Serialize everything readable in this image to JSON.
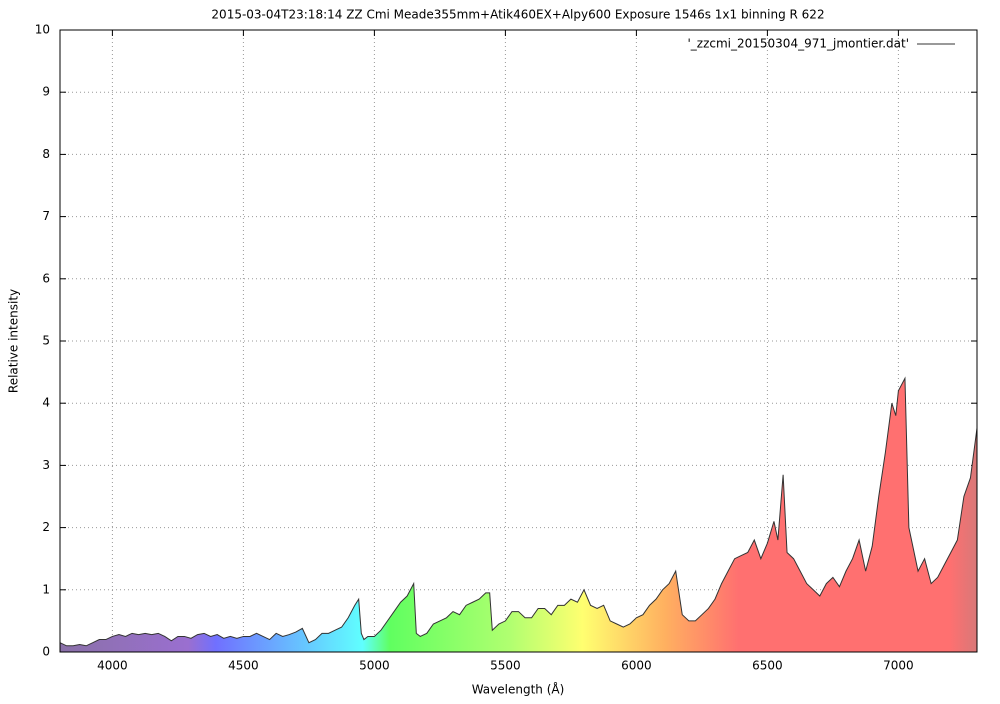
{
  "chart_data": {
    "type": "area",
    "title": "2015-03-04T23:18:14 ZZ Cmi Meade355mm+Atik460EX+Alpy600 Exposure 1546s 1x1 binning R 622",
    "x_label": "Wavelength (Å)",
    "y_label": "Relative intensity",
    "xlim": [
      3800,
      7300
    ],
    "ylim": [
      0,
      10
    ],
    "xticks": [
      4000,
      4500,
      5000,
      5500,
      6000,
      6500,
      7000
    ],
    "yticks": [
      0,
      1,
      2,
      3,
      4,
      5,
      6,
      7,
      8,
      9,
      10
    ],
    "grid": true,
    "legend": "top-right",
    "x": [
      3800,
      3825,
      3850,
      3875,
      3900,
      3925,
      3950,
      3975,
      4000,
      4025,
      4050,
      4075,
      4100,
      4125,
      4150,
      4175,
      4200,
      4225,
      4250,
      4275,
      4300,
      4325,
      4350,
      4375,
      4400,
      4425,
      4450,
      4475,
      4500,
      4525,
      4550,
      4575,
      4600,
      4625,
      4650,
      4675,
      4700,
      4725,
      4750,
      4775,
      4800,
      4825,
      4850,
      4875,
      4900,
      4925,
      4940,
      4950,
      4960,
      4975,
      5000,
      5025,
      5050,
      5075,
      5100,
      5125,
      5150,
      5160,
      5175,
      5200,
      5225,
      5250,
      5275,
      5300,
      5325,
      5350,
      5375,
      5400,
      5425,
      5440,
      5450,
      5475,
      5500,
      5525,
      5550,
      5575,
      5600,
      5625,
      5650,
      5675,
      5700,
      5725,
      5750,
      5775,
      5800,
      5825,
      5850,
      5875,
      5900,
      5925,
      5950,
      5975,
      6000,
      6025,
      6050,
      6075,
      6100,
      6125,
      6150,
      6175,
      6200,
      6225,
      6250,
      6275,
      6300,
      6325,
      6350,
      6375,
      6400,
      6425,
      6450,
      6475,
      6500,
      6525,
      6540,
      6560,
      6575,
      6600,
      6625,
      6650,
      6675,
      6700,
      6725,
      6750,
      6775,
      6800,
      6825,
      6850,
      6875,
      6900,
      6925,
      6950,
      6975,
      6990,
      7000,
      7025,
      7040,
      7050,
      7075,
      7100,
      7125,
      7150,
      7175,
      7200,
      7225,
      7250,
      7275,
      7300
    ],
    "series": [
      {
        "name": "'_zzcmi_20150304_971_jmontier.dat'",
        "color": "#333333",
        "values": [
          0.15,
          0.1,
          0.1,
          0.12,
          0.1,
          0.15,
          0.2,
          0.2,
          0.25,
          0.28,
          0.25,
          0.3,
          0.28,
          0.3,
          0.28,
          0.3,
          0.25,
          0.18,
          0.25,
          0.25,
          0.22,
          0.28,
          0.3,
          0.25,
          0.28,
          0.22,
          0.25,
          0.22,
          0.25,
          0.25,
          0.3,
          0.25,
          0.2,
          0.3,
          0.25,
          0.28,
          0.32,
          0.38,
          0.15,
          0.2,
          0.3,
          0.3,
          0.35,
          0.4,
          0.55,
          0.75,
          0.85,
          0.3,
          0.2,
          0.25,
          0.25,
          0.35,
          0.5,
          0.65,
          0.8,
          0.9,
          1.1,
          0.3,
          0.25,
          0.3,
          0.45,
          0.5,
          0.55,
          0.65,
          0.6,
          0.75,
          0.8,
          0.85,
          0.95,
          0.95,
          0.35,
          0.45,
          0.5,
          0.65,
          0.65,
          0.55,
          0.55,
          0.7,
          0.7,
          0.6,
          0.75,
          0.75,
          0.85,
          0.8,
          1.0,
          0.75,
          0.7,
          0.75,
          0.5,
          0.45,
          0.4,
          0.45,
          0.55,
          0.6,
          0.75,
          0.85,
          1.0,
          1.1,
          1.3,
          0.6,
          0.5,
          0.5,
          0.6,
          0.7,
          0.85,
          1.1,
          1.3,
          1.5,
          1.55,
          1.6,
          1.8,
          1.5,
          1.75,
          2.1,
          1.8,
          2.85,
          1.6,
          1.5,
          1.3,
          1.1,
          1.0,
          0.9,
          1.1,
          1.2,
          1.05,
          1.3,
          1.5,
          1.8,
          1.3,
          1.7,
          2.5,
          3.2,
          4.0,
          3.8,
          4.2,
          4.4,
          2.0,
          1.8,
          1.3,
          1.5,
          1.1,
          1.2,
          1.4,
          1.6,
          1.8,
          2.5,
          2.8,
          3.6
        ]
      }
    ]
  }
}
